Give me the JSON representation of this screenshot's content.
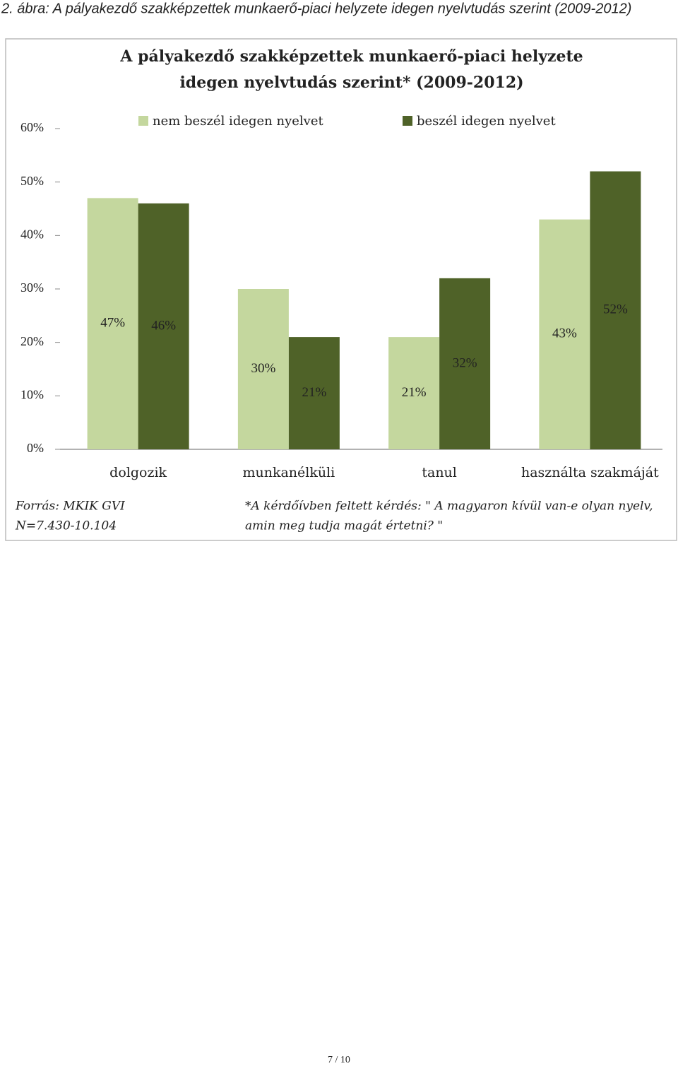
{
  "caption": "2. ábra: A pályakezdő szakképzettek munkaerő-piaci helyzete idegen nyelvtudás szerint (2009-2012)",
  "chart_data": {
    "type": "bar",
    "title": [
      "A pályakezdő szakképzettek munkaerő-piaci helyzete",
      "idegen nyelvtudás szerint* (2009-2012)"
    ],
    "categories": [
      "dolgozik",
      "munkanélküli",
      "tanul",
      "használta szakmáját"
    ],
    "series": [
      {
        "name": "nem beszél idegen nyelvet",
        "color": "#c4d79e",
        "values": [
          47,
          30,
          21,
          43
        ],
        "value_labels": [
          "47%",
          "30%",
          "21%",
          "43%"
        ]
      },
      {
        "name": "beszél idegen nyelvet",
        "color": "#4f6228",
        "values": [
          46,
          21,
          32,
          52
        ],
        "value_labels": [
          "46%",
          "21%",
          "32%",
          "52%"
        ]
      }
    ],
    "ylim": [
      0,
      60
    ],
    "yticks": [
      {
        "value": 0,
        "label": "0%"
      },
      {
        "value": 10,
        "label": "10%"
      },
      {
        "value": 20,
        "label": "20%"
      },
      {
        "value": 30,
        "label": "30%"
      },
      {
        "value": 40,
        "label": "40%"
      },
      {
        "value": 50,
        "label": "50%"
      },
      {
        "value": 60,
        "label": "60%"
      }
    ],
    "legend": "top"
  },
  "source": [
    "Forrás: MKIK GVI",
    "N=7.430-10.104"
  ],
  "note": [
    "*A kérdőívben feltett kérdés: \" A magyaron kívül van-e olyan nyelv,",
    "amin meg tudja magát értetni? \""
  ],
  "page_number": "7 / 10"
}
